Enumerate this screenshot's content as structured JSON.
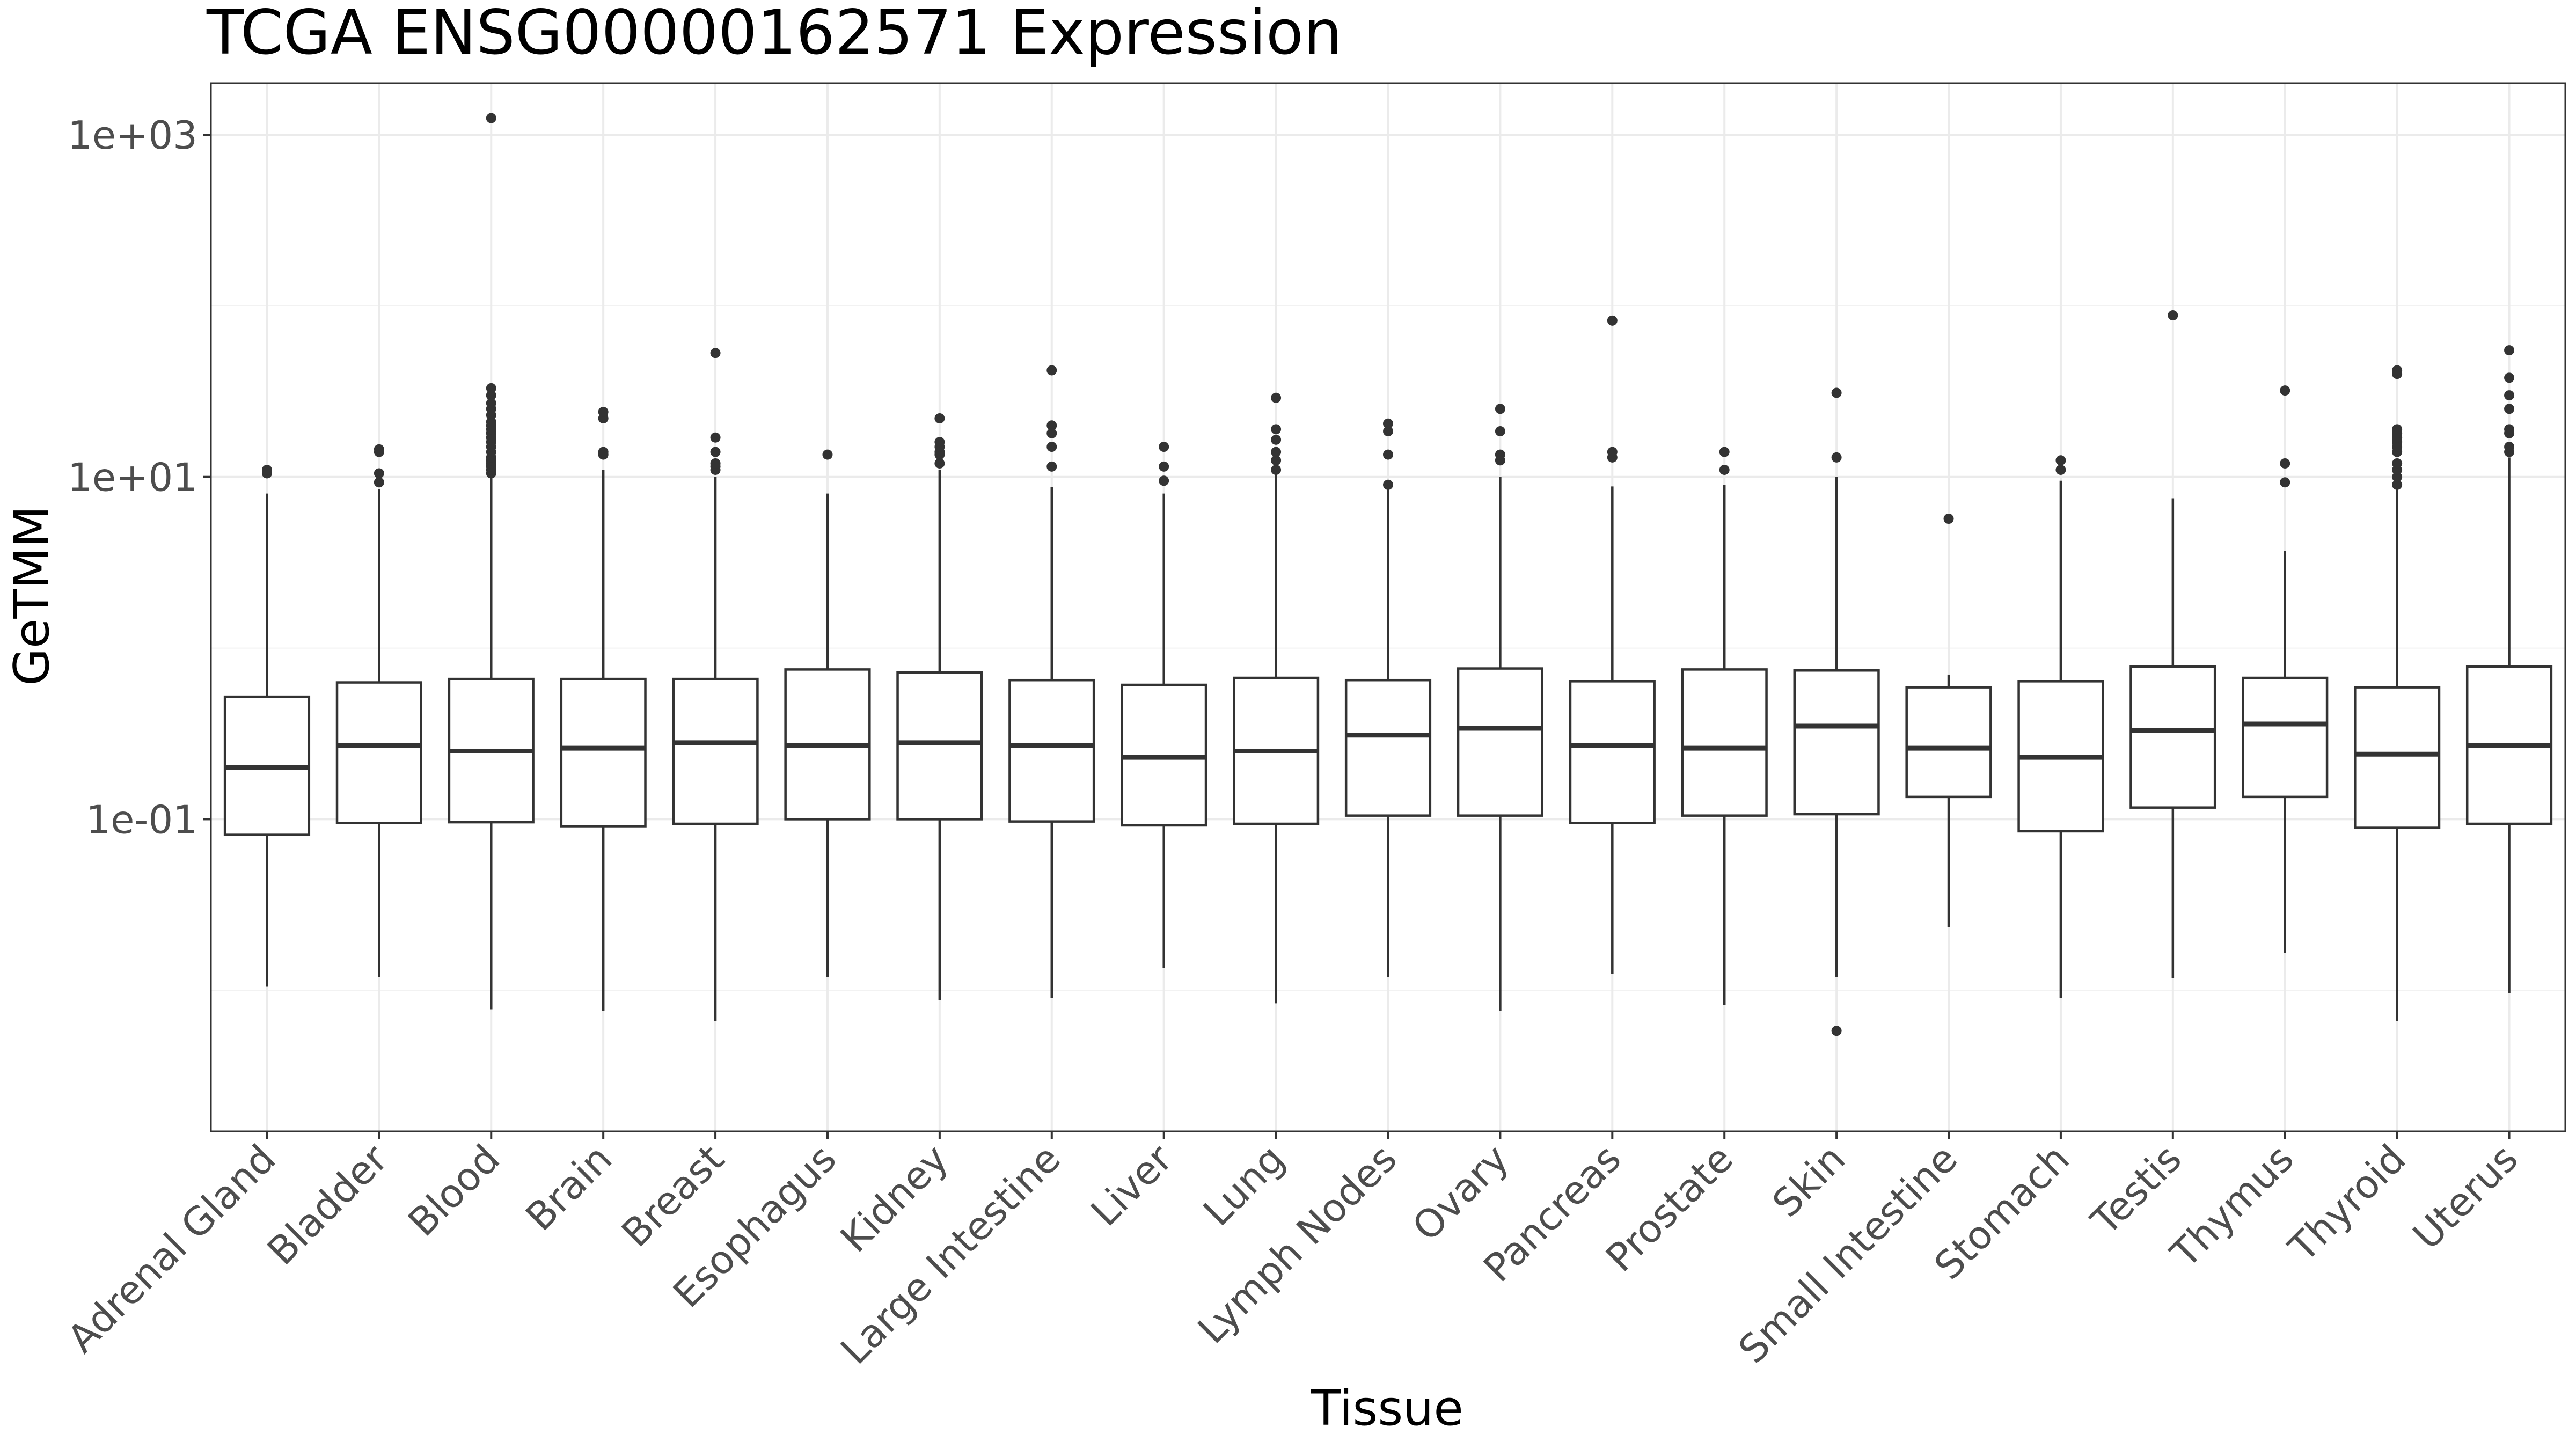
{
  "chart_data": {
    "type": "boxplot",
    "title": "TCGA ENSG00000162571 Expression",
    "xlabel": "Tissue",
    "ylabel": "GeTMM",
    "y_scale": "log10",
    "ylim": [
      0.0015,
      2000
    ],
    "y_ticks": [
      {
        "value": 0.1,
        "label": "1e-01"
      },
      {
        "value": 10,
        "label": "1e+01"
      },
      {
        "value": 1000,
        "label": "1e+03"
      }
    ],
    "y_minor_ticks": [
      0.01,
      1,
      100
    ],
    "grid": true,
    "categories": [
      "Adrenal Gland",
      "Bladder",
      "Blood",
      "Brain",
      "Breast",
      "Esophagus",
      "Kidney",
      "Large Intestine",
      "Liver",
      "Lung",
      "Lymph Nodes",
      "Ovary",
      "Pancreas",
      "Prostate",
      "Skin",
      "Small Intestine",
      "Stomach",
      "Testis",
      "Thymus",
      "Thyroid",
      "Uterus"
    ],
    "boxes": [
      {
        "tissue": "Adrenal Gland",
        "whisker_low": 0.0105,
        "q1": 0.081,
        "median": 0.2,
        "q3": 0.52,
        "whisker_high": 8.0,
        "outliers": [
          10.5,
          11.0
        ]
      },
      {
        "tissue": "Bladder",
        "whisker_low": 0.012,
        "q1": 0.095,
        "median": 0.27,
        "q3": 0.63,
        "whisker_high": 8.5,
        "outliers": [
          9.3,
          10.5,
          14.0,
          14.5
        ]
      },
      {
        "tissue": "Blood",
        "whisker_low": 0.0077,
        "q1": 0.096,
        "median": 0.25,
        "q3": 0.66,
        "whisker_high": 10.0,
        "outliers": [
          10.5,
          11.0,
          11.5,
          12.0,
          12.5,
          13.0,
          14.0,
          15.0,
          16.0,
          17.0,
          18.0,
          19.0,
          20.0,
          21.0,
          23.0,
          25.0,
          27.0,
          30.0,
          33.0,
          1250
        ]
      },
      {
        "tissue": "Brain",
        "whisker_low": 0.0076,
        "q1": 0.091,
        "median": 0.26,
        "q3": 0.66,
        "whisker_high": 11.0,
        "outliers": [
          13.5,
          14.0,
          22.0,
          24.0
        ]
      },
      {
        "tissue": "Breast",
        "whisker_low": 0.0066,
        "q1": 0.094,
        "median": 0.28,
        "q3": 0.66,
        "whisker_high": 10.0,
        "outliers": [
          11.0,
          11.5,
          12.0,
          14.0,
          17.0,
          53.0
        ]
      },
      {
        "tissue": "Esophagus",
        "whisker_low": 0.012,
        "q1": 0.1,
        "median": 0.27,
        "q3": 0.75,
        "whisker_high": 8.0,
        "outliers": [
          13.5
        ]
      },
      {
        "tissue": "Kidney",
        "whisker_low": 0.0088,
        "q1": 0.1,
        "median": 0.28,
        "q3": 0.72,
        "whisker_high": 11.0,
        "outliers": [
          12.0,
          13.5,
          14.0,
          15.0,
          16.0,
          22.0
        ]
      },
      {
        "tissue": "Large Intestine",
        "whisker_low": 0.009,
        "q1": 0.097,
        "median": 0.27,
        "q3": 0.65,
        "whisker_high": 8.7,
        "outliers": [
          11.5,
          15.0,
          18.0,
          20.0,
          42.0
        ]
      },
      {
        "tissue": "Liver",
        "whisker_low": 0.0135,
        "q1": 0.092,
        "median": 0.23,
        "q3": 0.61,
        "whisker_high": 8.0,
        "outliers": [
          9.5,
          11.5,
          15.0
        ]
      },
      {
        "tissue": "Lung",
        "whisker_low": 0.0084,
        "q1": 0.094,
        "median": 0.25,
        "q3": 0.67,
        "whisker_high": 10.5,
        "outliers": [
          11.0,
          12.5,
          14.0,
          16.5,
          19.0,
          29.0
        ]
      },
      {
        "tissue": "Lymph Nodes",
        "whisker_low": 0.012,
        "q1": 0.105,
        "median": 0.31,
        "q3": 0.65,
        "whisker_high": 8.5,
        "outliers": [
          9.0,
          13.5,
          18.5,
          20.5
        ]
      },
      {
        "tissue": "Ovary",
        "whisker_low": 0.0076,
        "q1": 0.105,
        "median": 0.34,
        "q3": 0.76,
        "whisker_high": 10.0,
        "outliers": [
          12.5,
          13.5,
          18.5,
          25.0
        ]
      },
      {
        "tissue": "Pancreas",
        "whisker_low": 0.0125,
        "q1": 0.095,
        "median": 0.27,
        "q3": 0.64,
        "whisker_high": 8.8,
        "outliers": [
          13.0,
          14.0,
          82.0
        ]
      },
      {
        "tissue": "Prostate",
        "whisker_low": 0.0082,
        "q1": 0.105,
        "median": 0.26,
        "q3": 0.75,
        "whisker_high": 9.0,
        "outliers": [
          11.0,
          14.0
        ]
      },
      {
        "tissue": "Skin",
        "whisker_low": 0.012,
        "q1": 0.107,
        "median": 0.35,
        "q3": 0.74,
        "whisker_high": 10.0,
        "outliers": [
          0.0058,
          13.0,
          31.0
        ]
      },
      {
        "tissue": "Small Intestine",
        "whisker_low": 0.0235,
        "q1": 0.135,
        "median": 0.26,
        "q3": 0.59,
        "whisker_high": 0.7,
        "outliers": [
          5.7
        ]
      },
      {
        "tissue": "Stomach",
        "whisker_low": 0.009,
        "q1": 0.085,
        "median": 0.23,
        "q3": 0.64,
        "whisker_high": 9.5,
        "outliers": [
          11.0,
          12.5
        ]
      },
      {
        "tissue": "Testis",
        "whisker_low": 0.0118,
        "q1": 0.117,
        "median": 0.33,
        "q3": 0.78,
        "whisker_high": 7.5,
        "outliers": [
          88.0
        ]
      },
      {
        "tissue": "Thymus",
        "whisker_low": 0.0165,
        "q1": 0.135,
        "median": 0.36,
        "q3": 0.67,
        "whisker_high": 3.7,
        "outliers": [
          9.3,
          12.0,
          32.0
        ]
      },
      {
        "tissue": "Thyroid",
        "whisker_low": 0.0066,
        "q1": 0.089,
        "median": 0.24,
        "q3": 0.59,
        "whisker_high": 8.5,
        "outliers": [
          9.0,
          10.0,
          11.0,
          12.0,
          14.0,
          15.0,
          16.0,
          17.0,
          18.0,
          19.0,
          40.0,
          42.0
        ]
      },
      {
        "tissue": "Uterus",
        "whisker_low": 0.0096,
        "q1": 0.094,
        "median": 0.27,
        "q3": 0.78,
        "whisker_high": 13.0,
        "outliers": [
          14.0,
          15.0,
          18.0,
          19.0,
          25.0,
          30.0,
          38.0,
          55.0
        ]
      }
    ]
  }
}
